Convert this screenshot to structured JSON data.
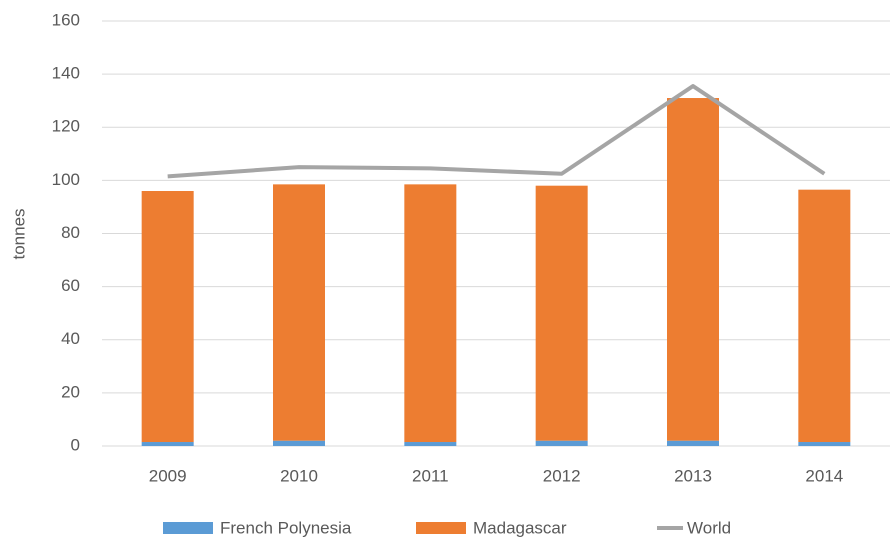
{
  "chart_data": {
    "type": "stacked-bar-line",
    "y_label": "tonnes",
    "categories": [
      "2009",
      "2010",
      "2011",
      "2012",
      "2013",
      "2014"
    ],
    "series": [
      {
        "name": "French Polynesia",
        "color": "#5b9bd5",
        "kind": "bar",
        "values": [
          1.5,
          2,
          1.5,
          2,
          2,
          1.5
        ]
      },
      {
        "name": "Madagascar",
        "color": "#ed7d31",
        "kind": "bar",
        "values": [
          94.5,
          96.5,
          97,
          96,
          129,
          95
        ]
      },
      {
        "name": "World",
        "color": "#a5a5a5",
        "kind": "line",
        "values": [
          101.5,
          105,
          104.5,
          102.5,
          135.5,
          102.5
        ]
      }
    ],
    "ylim": [
      0,
      160
    ],
    "yticks": [
      0,
      20,
      40,
      60,
      80,
      100,
      120,
      140,
      160
    ],
    "grid": true,
    "legend": "bottom"
  }
}
